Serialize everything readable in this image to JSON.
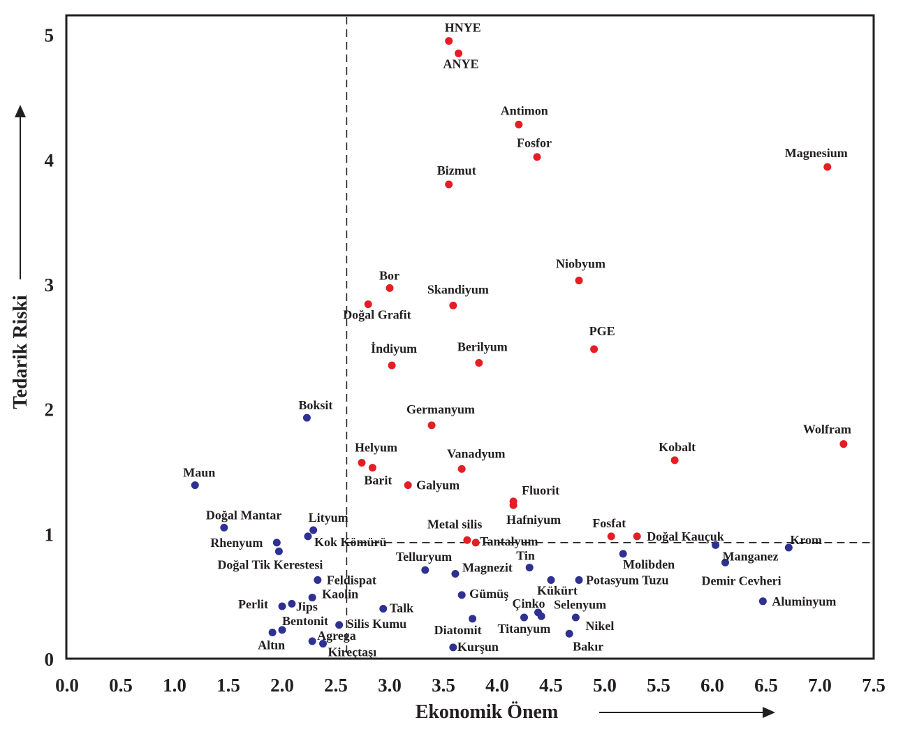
{
  "chart_data": {
    "type": "scatter",
    "xlabel": "Ekonomik Önem",
    "ylabel": "Tedarik Riski",
    "xlim": [
      0.0,
      7.5
    ],
    "ylim": [
      0,
      5
    ],
    "xticks": [
      "0.0",
      "0.5",
      "1.0",
      "1.5",
      "2.0",
      "2.5",
      "3.0",
      "3.5",
      "4.0",
      "4.5",
      "5.0",
      "5.5",
      "6.0",
      "6.5",
      "7.0",
      "7.5"
    ],
    "yticks": [
      "0",
      "1",
      "2",
      "3",
      "4",
      "5"
    ],
    "thresholds": {
      "x": 2.6,
      "y": 0.93
    },
    "grid": false,
    "colors": {
      "critical": "#e31e24",
      "noncritical": "#2e3192",
      "axis": "#231f20"
    },
    "series": [
      {
        "group": "critical",
        "points": [
          {
            "label": "HNYE",
            "x": 3.55,
            "y": 4.95
          },
          {
            "label": "ANYE",
            "x": 3.64,
            "y": 4.85
          },
          {
            "label": "Antimon",
            "x": 4.2,
            "y": 4.28
          },
          {
            "label": "Fosfor",
            "x": 4.37,
            "y": 4.02
          },
          {
            "label": "Magnesium",
            "x": 7.07,
            "y": 3.94
          },
          {
            "label": "Bizmut",
            "x": 3.55,
            "y": 3.8
          },
          {
            "label": "Niobyum",
            "x": 4.76,
            "y": 3.03
          },
          {
            "label": "Bor",
            "x": 3.0,
            "y": 2.97
          },
          {
            "label": "Skandiyum",
            "x": 3.59,
            "y": 2.83
          },
          {
            "label": "Doğal Grafit",
            "x": 2.8,
            "y": 2.84
          },
          {
            "label": "PGE",
            "x": 4.9,
            "y": 2.48
          },
          {
            "label": "İndiyum",
            "x": 3.02,
            "y": 2.35
          },
          {
            "label": "Berilyum",
            "x": 3.83,
            "y": 2.37
          },
          {
            "label": "Germanyum",
            "x": 3.39,
            "y": 1.87
          },
          {
            "label": "Wolfram",
            "x": 7.22,
            "y": 1.72
          },
          {
            "label": "Kobalt",
            "x": 5.65,
            "y": 1.59
          },
          {
            "label": "Helyum",
            "x": 2.74,
            "y": 1.57
          },
          {
            "label": "Barit",
            "x": 2.84,
            "y": 1.53
          },
          {
            "label": "Vanadyum",
            "x": 3.67,
            "y": 1.52
          },
          {
            "label": "Galyum",
            "x": 3.17,
            "y": 1.39
          },
          {
            "label": "Fluorit",
            "x": 4.15,
            "y": 1.26
          },
          {
            "label": "Hafniyum",
            "x": 4.15,
            "y": 1.23
          },
          {
            "label": "Fosfat",
            "x": 5.06,
            "y": 0.98
          },
          {
            "label": "Doğal Kauçuk",
            "x": 5.3,
            "y": 0.98
          },
          {
            "label": "Metal silis",
            "x": 3.72,
            "y": 0.95
          },
          {
            "label": "Tantalyum",
            "x": 3.8,
            "y": 0.93
          }
        ]
      },
      {
        "group": "noncritical",
        "points": [
          {
            "label": "Boksit",
            "x": 2.23,
            "y": 1.93
          },
          {
            "label": "Maun",
            "x": 1.19,
            "y": 1.39
          },
          {
            "label": "Doğal Mantar",
            "x": 1.46,
            "y": 1.05
          },
          {
            "label": "Lityum",
            "x": 2.29,
            "y": 1.03
          },
          {
            "label": "Kok Kömürü",
            "x": 2.24,
            "y": 0.98
          },
          {
            "label": "Rhenyum",
            "x": 1.95,
            "y": 0.93
          },
          {
            "label": "Doğal Tik Kerestesi",
            "x": 1.97,
            "y": 0.86
          },
          {
            "label": "Telluryum",
            "x": 3.33,
            "y": 0.71
          },
          {
            "label": "Magnezit",
            "x": 3.61,
            "y": 0.68
          },
          {
            "label": "Tin",
            "x": 4.3,
            "y": 0.73
          },
          {
            "label": "Feldispat",
            "x": 2.33,
            "y": 0.63
          },
          {
            "label": "Kükürt",
            "x": 4.5,
            "y": 0.63
          },
          {
            "label": "Potasyum Tuzu",
            "x": 4.76,
            "y": 0.63
          },
          {
            "label": "Molibden",
            "x": 5.17,
            "y": 0.84
          },
          {
            "label": "Manganez",
            "x": 6.03,
            "y": 0.91
          },
          {
            "label": "Krom",
            "x": 6.71,
            "y": 0.89
          },
          {
            "label": "Demir Cevheri",
            "x": 6.12,
            "y": 0.77
          },
          {
            "label": "Kaolin",
            "x": 2.28,
            "y": 0.49
          },
          {
            "label": "Gümüş",
            "x": 3.67,
            "y": 0.51
          },
          {
            "label": "Aluminyum",
            "x": 6.47,
            "y": 0.46
          },
          {
            "label": "Perlit",
            "x": 2.0,
            "y": 0.42
          },
          {
            "label": "Jips",
            "x": 2.09,
            "y": 0.44
          },
          {
            "label": "Talk",
            "x": 2.94,
            "y": 0.4
          },
          {
            "label": "Çinko",
            "x": 4.38,
            "y": 0.37
          },
          {
            "label": "Selenyum",
            "x": 4.41,
            "y": 0.34
          },
          {
            "label": "Titanyum",
            "x": 4.25,
            "y": 0.33
          },
          {
            "label": "Diatomit",
            "x": 3.77,
            "y": 0.32
          },
          {
            "label": "Nikel",
            "x": 4.73,
            "y": 0.33
          },
          {
            "label": "Silis Kumu",
            "x": 2.53,
            "y": 0.27
          },
          {
            "label": "Bentonit",
            "x": 2.0,
            "y": 0.23
          },
          {
            "label": "Altın",
            "x": 1.91,
            "y": 0.21
          },
          {
            "label": "Agrega",
            "x": 2.28,
            "y": 0.14
          },
          {
            "label": "Kireçtaşı",
            "x": 2.38,
            "y": 0.12
          },
          {
            "label": "Bakır",
            "x": 4.67,
            "y": 0.2
          },
          {
            "label": "Kurşun",
            "x": 3.59,
            "y": 0.09
          }
        ]
      }
    ]
  }
}
